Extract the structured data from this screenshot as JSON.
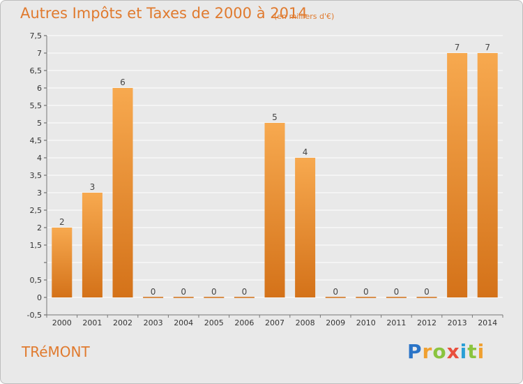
{
  "header": {
    "title": "Autres Impôts et Taxes de 2000 à 2014",
    "subtitle": "(en milliers d'€)"
  },
  "footer": {
    "commune": "TRéMONT",
    "brand": [
      "P",
      "r",
      "o",
      "x",
      "i",
      "t",
      "i"
    ]
  },
  "colors": {
    "bar_light": "#f7a94f",
    "bar_dark": "#d47219",
    "text_orange": "#e07a2e",
    "grid": "#ffffff",
    "background": "#e9e9e9"
  },
  "chart_data": {
    "type": "bar",
    "title": "Autres Impôts et Taxes de 2000 à 2014",
    "subtitle": "(en milliers d'€)",
    "xlabel": "",
    "ylabel": "",
    "categories": [
      "2000",
      "2001",
      "2002",
      "2003",
      "2004",
      "2005",
      "2006",
      "2007",
      "2008",
      "2009",
      "2010",
      "2011",
      "2012",
      "2013",
      "2014"
    ],
    "values": [
      2,
      3,
      6,
      0,
      0,
      0,
      0,
      5,
      4,
      0,
      0,
      0,
      0,
      7,
      7
    ],
    "data_labels": [
      "2",
      "3",
      "6",
      "0",
      "0",
      "0",
      "0",
      "5",
      "4",
      "0",
      "0",
      "0",
      "0",
      "7",
      "7"
    ],
    "ylim": [
      -0.5,
      7.5
    ],
    "yticks": [
      -0.5,
      0,
      0.5,
      1,
      1.5,
      2,
      2.5,
      3,
      3.5,
      4,
      4.5,
      5,
      5.5,
      6,
      6.5,
      7,
      7.5
    ],
    "ytick_labels": [
      "-0,5",
      "0",
      "0,5",
      "",
      "1,5",
      "2",
      "2,5",
      "3",
      "3,5",
      "4",
      "4,5",
      "5",
      "5,5",
      "6",
      "6,5",
      "7",
      "7,5"
    ],
    "grid": true,
    "legend": "none"
  }
}
